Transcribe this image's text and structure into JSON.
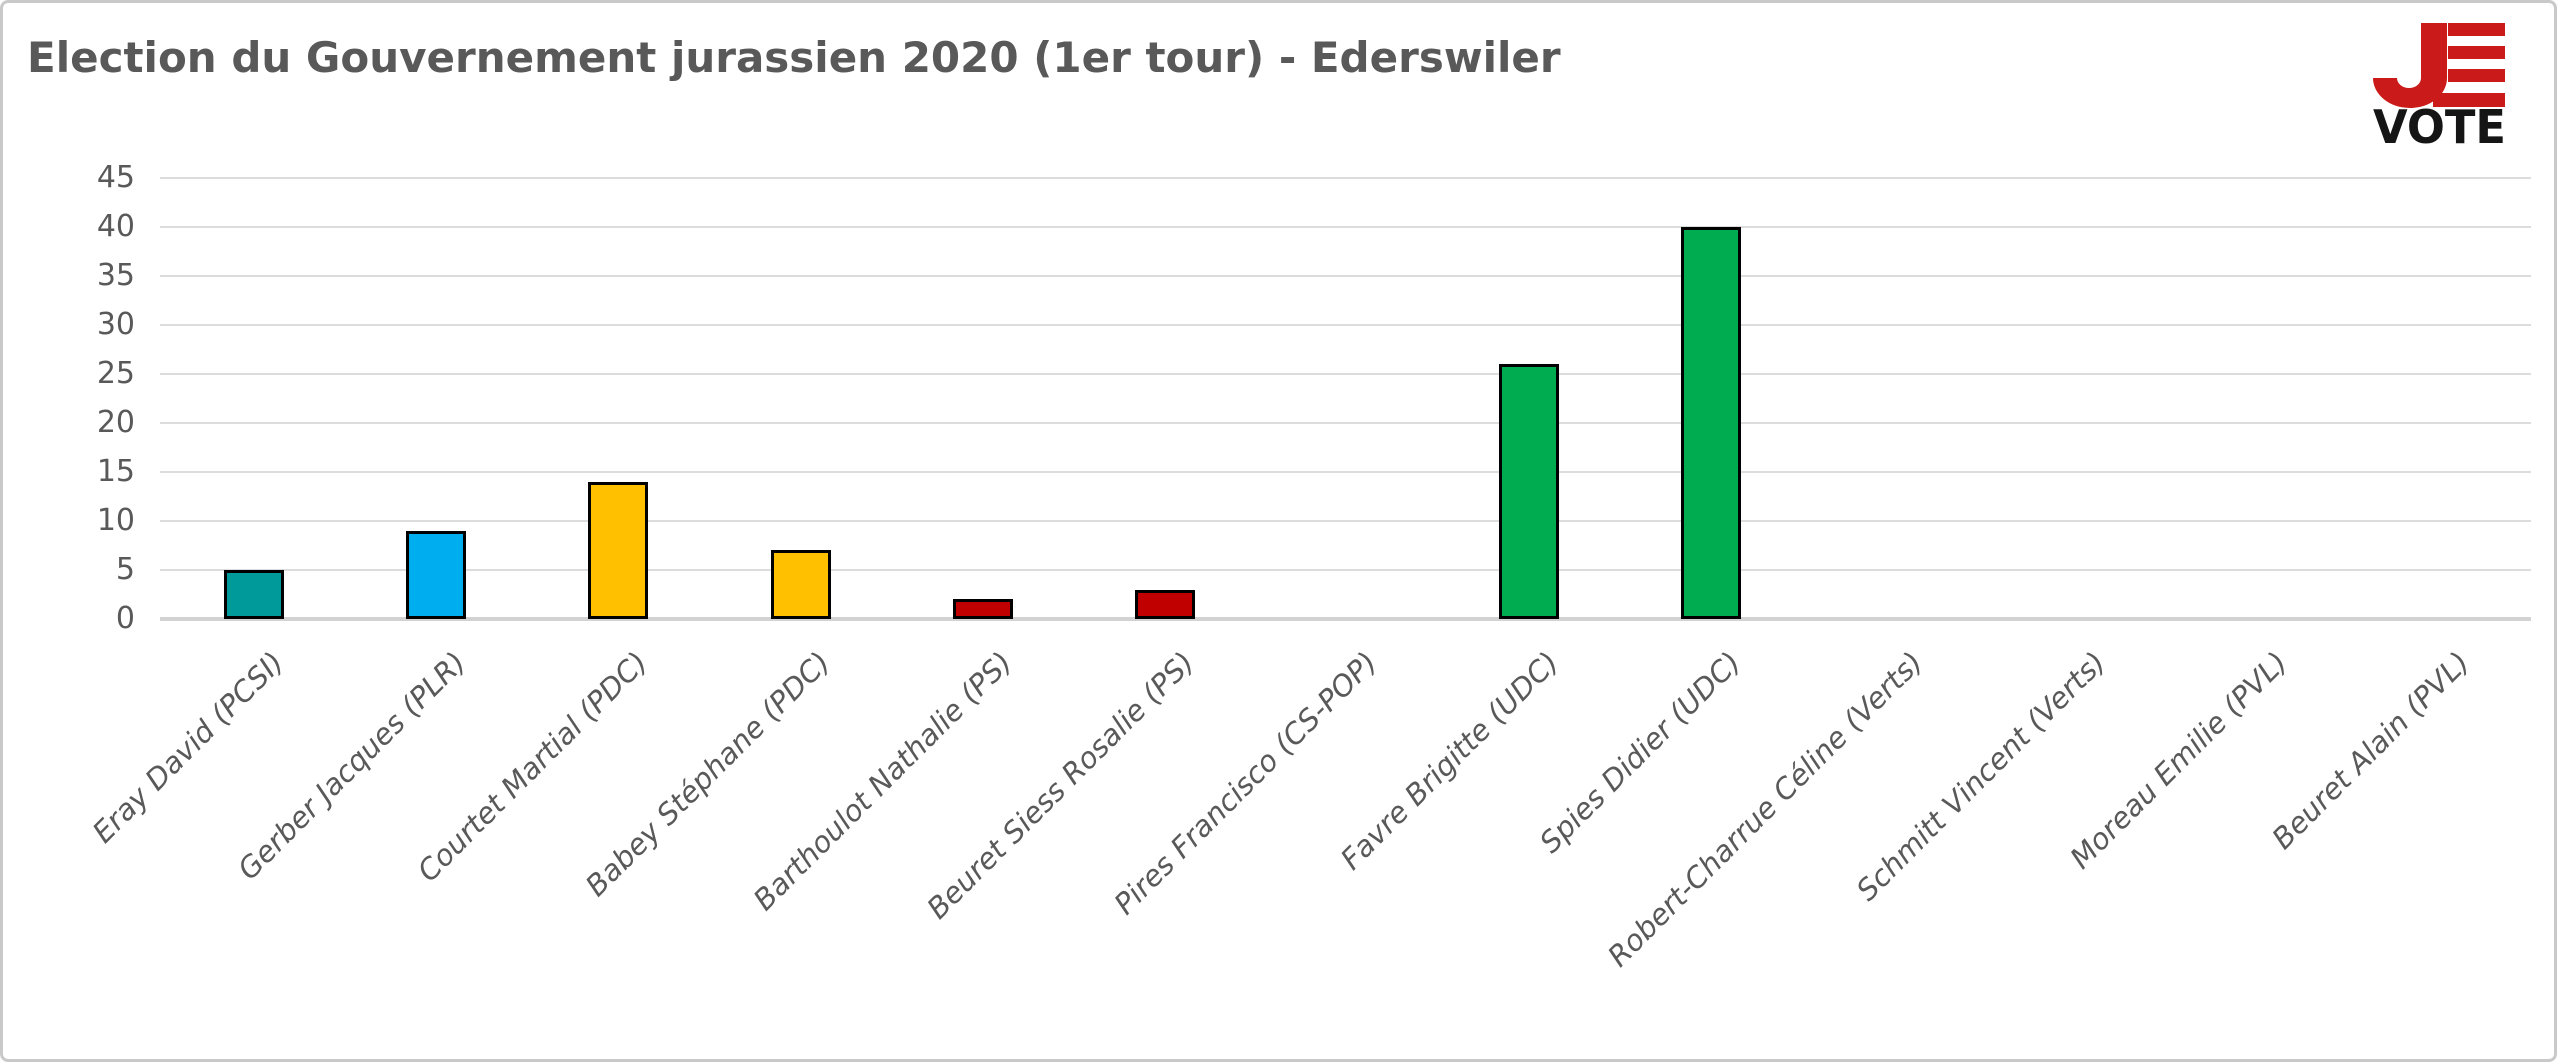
{
  "header": {
    "title": "Election du Gouvernement jurassien 2020 (1er tour) - Ederswiler"
  },
  "logo": {
    "j_letter": "J",
    "vote_label": "VOTE",
    "red": "#cb1a1a",
    "black": "#151515"
  },
  "chart_data": {
    "type": "bar",
    "title": "Election du Gouvernement jurassien 2020 (1er tour) - Ederswiler",
    "categories": [
      "Eray David (PCSI)",
      "Gerber Jacques (PLR)",
      "Courtet Martial (PDC)",
      "Babey Stéphane (PDC)",
      "Barthoulot Nathalie (PS)",
      "Beuret Siess Rosalie (PS)",
      "Pires Francisco (CS-POP)",
      "Favre Brigitte (UDC)",
      "Spies Didier (UDC)",
      "Robert-Charrue Céline (Verts)",
      "Schmitt Vincent (Verts)",
      "Moreau Emilie (PVL)",
      "Beuret Alain (PVL)"
    ],
    "values": [
      5,
      9,
      14,
      7,
      2,
      3,
      0,
      26,
      40,
      0,
      0,
      0,
      0
    ],
    "bar_colors": [
      "#009a9a",
      "#00aeef",
      "#ffc000",
      "#ffc000",
      "#c00000",
      "#c00000",
      null,
      "#00ac50",
      "#00ac50",
      null,
      null,
      null,
      null
    ],
    "bar_border_color": "#000000",
    "xlabel": "",
    "ylabel": "",
    "ylim": [
      0,
      45
    ],
    "yticks": [
      0,
      5,
      10,
      15,
      20,
      25,
      30,
      35,
      40,
      45
    ],
    "grid": true,
    "gridline_color": "#dcdcdc",
    "tick_label_color": "#595959",
    "legend": "none"
  }
}
